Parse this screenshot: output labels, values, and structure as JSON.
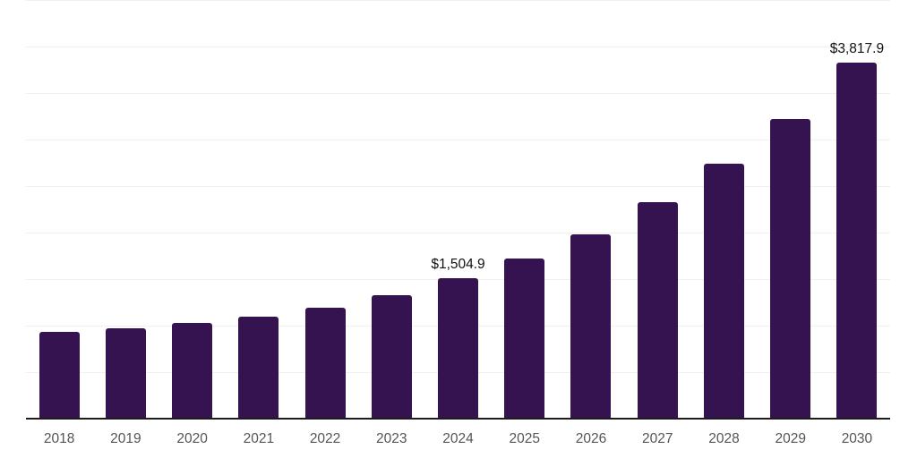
{
  "chart_data": {
    "type": "bar",
    "title": "",
    "xlabel": "",
    "ylabel": "",
    "categories": [
      "2018",
      "2019",
      "2020",
      "2021",
      "2022",
      "2023",
      "2024",
      "2025",
      "2026",
      "2027",
      "2028",
      "2029",
      "2030"
    ],
    "values": [
      920,
      960,
      1015,
      1090,
      1180,
      1320,
      1504.9,
      1710,
      1970,
      2315,
      2735,
      3210,
      3817.9
    ],
    "data_labels": [
      "",
      "",
      "",
      "",
      "",
      "",
      "$1,504.9",
      "",
      "",
      "",
      "",
      "",
      "$3,817.9"
    ],
    "ylim": [
      0,
      4500
    ],
    "gridline_step": 500,
    "grid": "horizontal-only",
    "legend": "none",
    "y_axis_tick_labels": "none",
    "colors": {
      "bar": "#351250",
      "axis": "#1c1c1c",
      "gridline": "#f0f0f0",
      "tick_label": "#545456",
      "data_label": "#111111",
      "background": "#ffffff"
    }
  }
}
